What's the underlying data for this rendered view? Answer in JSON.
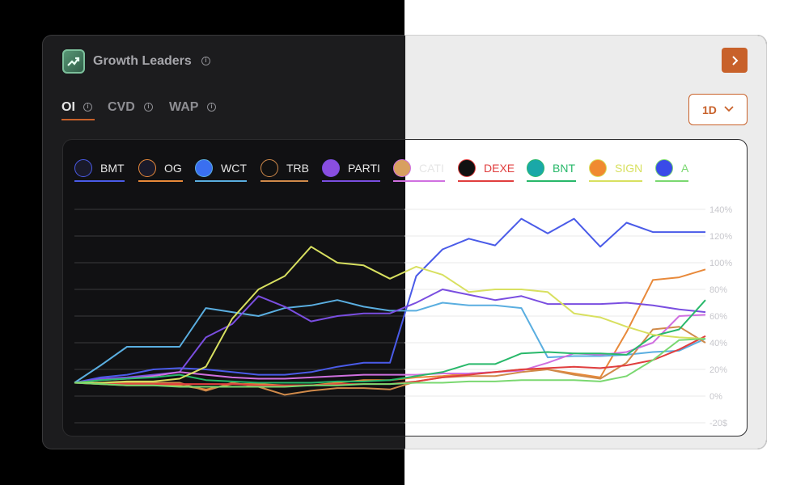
{
  "header": {
    "title": "Growth Leaders"
  },
  "tabs": [
    {
      "label": "OI",
      "active": true
    },
    {
      "label": "CVD",
      "active": false
    },
    {
      "label": "WAP",
      "active": false
    }
  ],
  "range": {
    "selected": "1D"
  },
  "colors": {
    "accent": "#c8612a"
  },
  "chart_data": {
    "type": "line",
    "title": "",
    "xlabel": "",
    "ylabel": "",
    "y_axis_position": "right",
    "ylim": [
      -20,
      140
    ],
    "yticks": [
      "140%",
      "120%",
      "100%",
      "80%",
      "60%",
      "40%",
      "20%",
      "0%",
      "-20$"
    ],
    "legend_position": "top",
    "grid": true,
    "x": [
      0,
      1,
      2,
      3,
      4,
      5,
      6,
      7,
      8,
      9,
      10,
      11,
      12,
      13,
      14,
      15,
      16,
      17,
      18,
      19,
      20,
      21,
      22,
      23,
      24
    ],
    "series": [
      {
        "name": "BMT",
        "color": "#4a5be8",
        "icon": "bmt-icon",
        "values": [
          10,
          14,
          16,
          20,
          21,
          20,
          18,
          16,
          16,
          18,
          22,
          25,
          25,
          90,
          110,
          118,
          113,
          133,
          122,
          133,
          112,
          130,
          123,
          123,
          123
        ]
      },
      {
        "name": "OG",
        "color": "#e8893a",
        "icon": "og-icon",
        "values": [
          10,
          9,
          8,
          8,
          8,
          5,
          9,
          9,
          8,
          8,
          10,
          12,
          12,
          14,
          15,
          17,
          18,
          20,
          20,
          17,
          14,
          48,
          87,
          89,
          95
        ]
      },
      {
        "name": "WCT",
        "color": "#5aaee0",
        "icon": "wct-icon",
        "values": [
          10,
          23,
          37,
          37,
          37,
          66,
          63,
          60,
          66,
          68,
          72,
          67,
          64,
          64,
          70,
          68,
          68,
          66,
          29,
          30,
          30,
          31,
          33,
          34,
          43
        ]
      },
      {
        "name": "TRB",
        "color": "#d08a4a",
        "icon": "trb-icon",
        "values": [
          10,
          10,
          10,
          10,
          10,
          4,
          10,
          7,
          1,
          4,
          6,
          6,
          5,
          11,
          14,
          15,
          15,
          18,
          20,
          16,
          13,
          25,
          50,
          52,
          40
        ]
      },
      {
        "name": "PARTI",
        "color": "#7a4ee0",
        "icon": "parti-icon",
        "values": [
          10,
          13,
          14,
          16,
          18,
          44,
          54,
          75,
          67,
          56,
          60,
          62,
          62,
          70,
          80,
          76,
          72,
          75,
          69,
          69,
          69,
          70,
          68,
          65,
          63
        ]
      },
      {
        "name": "CATI",
        "color": "#d070e0",
        "icon": "cati-icon",
        "values": [
          10,
          12,
          13,
          15,
          18,
          16,
          14,
          13,
          13,
          14,
          15,
          16,
          16,
          16,
          17,
          17,
          18,
          19,
          25,
          32,
          31,
          33,
          40,
          60,
          61
        ]
      },
      {
        "name": "DEXE",
        "color": "#e03e3e",
        "icon": "dexe-icon",
        "values": [
          10,
          9,
          9,
          9,
          9,
          9,
          9,
          8,
          8,
          8,
          9,
          9,
          9,
          11,
          14,
          16,
          18,
          20,
          21,
          22,
          21,
          23,
          27,
          35,
          45
        ]
      },
      {
        "name": "BNT",
        "color": "#28b86a",
        "icon": "bnt-icon",
        "values": [
          10,
          12,
          13,
          14,
          16,
          12,
          11,
          10,
          10,
          10,
          11,
          11,
          12,
          15,
          18,
          24,
          24,
          32,
          33,
          32,
          32,
          31,
          45,
          50,
          72
        ]
      },
      {
        "name": "SIGN",
        "color": "#d8e060",
        "icon": "sign-icon",
        "values": [
          10,
          10,
          11,
          11,
          13,
          22,
          58,
          80,
          90,
          112,
          100,
          98,
          88,
          97,
          91,
          78,
          80,
          80,
          78,
          62,
          59,
          52,
          46,
          44,
          43
        ]
      },
      {
        "name": "A",
        "color": "#7ad870",
        "icon": "a-icon",
        "values": [
          10,
          9,
          8,
          8,
          7,
          7,
          7,
          7,
          7,
          8,
          8,
          9,
          9,
          10,
          10,
          11,
          11,
          12,
          12,
          12,
          11,
          15,
          27,
          42,
          43
        ]
      }
    ]
  }
}
